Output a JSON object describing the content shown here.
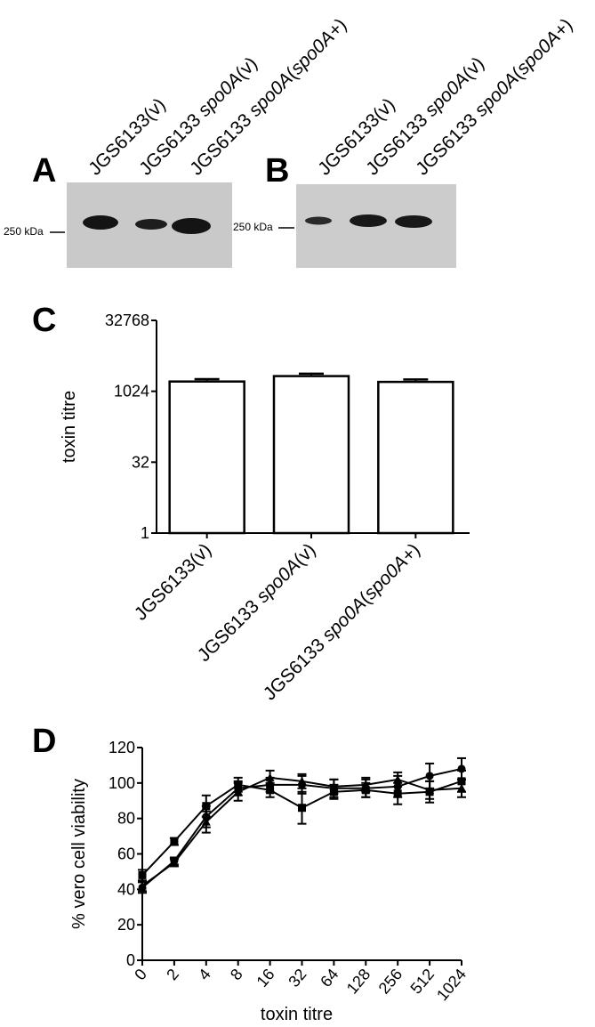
{
  "panels": {
    "A": {
      "letter": "A",
      "marker_label": "250 kDa",
      "lanes": [
        {
          "label_parts": [
            {
              "t": "JGS6133(v)",
              "i": false
            }
          ]
        },
        {
          "label_parts": [
            {
              "t": "JGS6133 ",
              "i": false
            },
            {
              "t": "spo0A",
              "i": true
            },
            {
              "t": "(v)",
              "i": false
            }
          ]
        },
        {
          "label_parts": [
            {
              "t": "JGS6133 ",
              "i": false
            },
            {
              "t": "spo0A",
              "i": true
            },
            {
              "t": "(",
              "i": false
            },
            {
              "t": "spo0A+",
              "i": true
            },
            {
              "t": ")",
              "i": false
            }
          ]
        }
      ],
      "blot_background": "#c9c9c9",
      "band_color": "#141414"
    },
    "B": {
      "letter": "B",
      "marker_label": "250 kDa",
      "lanes": [
        {
          "label_parts": [
            {
              "t": "JGS6133(v)",
              "i": false
            }
          ]
        },
        {
          "label_parts": [
            {
              "t": "JGS6133 ",
              "i": false
            },
            {
              "t": "spo0A",
              "i": true
            },
            {
              "t": "(v)",
              "i": false
            }
          ]
        },
        {
          "label_parts": [
            {
              "t": "JGS6133 ",
              "i": false
            },
            {
              "t": "spo0A",
              "i": true
            },
            {
              "t": "(",
              "i": false
            },
            {
              "t": "spo0A+",
              "i": true
            },
            {
              "t": ")",
              "i": false
            }
          ]
        }
      ],
      "blot_background": "#cccccc",
      "band_color": "#181818"
    },
    "C": {
      "letter": "C"
    },
    "D": {
      "letter": "D"
    }
  },
  "chart_data": [
    {
      "panel": "C",
      "type": "bar",
      "scale": "log2",
      "ylabel": "toxin titre",
      "xlabel": "",
      "yticks": [
        1,
        32,
        1024,
        32768
      ],
      "ylim": [
        1,
        32768
      ],
      "categories": [
        [
          {
            "t": "JGS6133(v)",
            "i": false
          }
        ],
        [
          {
            "t": "JGS6133 ",
            "i": false
          },
          {
            "t": "spo0A",
            "i": true
          },
          {
            "t": "(v)",
            "i": false
          }
        ],
        [
          {
            "t": "JGS6133 ",
            "i": false
          },
          {
            "t": "spo0A",
            "i": true
          },
          {
            "t": "(",
            "i": false
          },
          {
            "t": "spo0A+",
            "i": true
          },
          {
            "t": ")",
            "i": false
          }
        ]
      ],
      "values": [
        1650,
        2150,
        1620
      ],
      "errors_upper": [
        1860,
        2420,
        1830
      ],
      "bar_fill": "#ffffff",
      "bar_stroke": "#000000"
    },
    {
      "panel": "D",
      "type": "line",
      "xlabel": "toxin titre",
      "ylabel": "% vero cell viability",
      "x": [
        "0",
        "2",
        "4",
        "8",
        "16",
        "32",
        "64",
        "128",
        "256",
        "512",
        "1024"
      ],
      "ylim": [
        0,
        120
      ],
      "yticks": [
        0,
        20,
        40,
        60,
        80,
        100,
        120
      ],
      "series": [
        {
          "marker": "circle",
          "values": [
            41,
            56,
            81,
            97,
            99,
            99,
            97,
            97,
            98,
            104,
            108
          ],
          "err": [
            3,
            2,
            6,
            4,
            4,
            5,
            5,
            5,
            6,
            7,
            6
          ]
        },
        {
          "marker": "square",
          "values": [
            48,
            67,
            87,
            99,
            96,
            86,
            95,
            96,
            94,
            95,
            101
          ],
          "err": [
            3,
            2,
            6,
            4,
            4,
            9,
            4,
            4,
            6,
            6,
            6
          ]
        },
        {
          "marker": "triangle",
          "values": [
            42,
            55,
            78,
            95,
            103,
            101,
            98,
            99,
            102,
            96,
            97
          ],
          "err": [
            3,
            2,
            6,
            5,
            4,
            4,
            4,
            4,
            4,
            5,
            5
          ]
        }
      ]
    }
  ]
}
